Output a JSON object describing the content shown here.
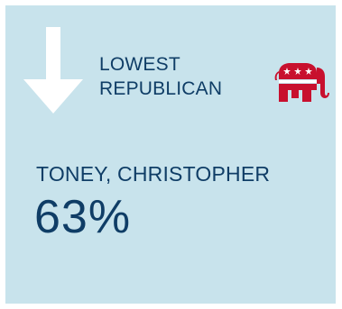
{
  "header": {
    "line1": "LOWEST",
    "line2": "REPUBLICAN"
  },
  "icons": {
    "arrow": "down-arrow-icon",
    "party": "republican-elephant-icon"
  },
  "candidate": {
    "name": "TONEY, CHRISTOPHER",
    "percent": "63%"
  },
  "colors": {
    "card_background": "#c8e3ec",
    "text": "#0f3d66",
    "arrow": "#ffffff",
    "elephant": "#c8102e"
  }
}
